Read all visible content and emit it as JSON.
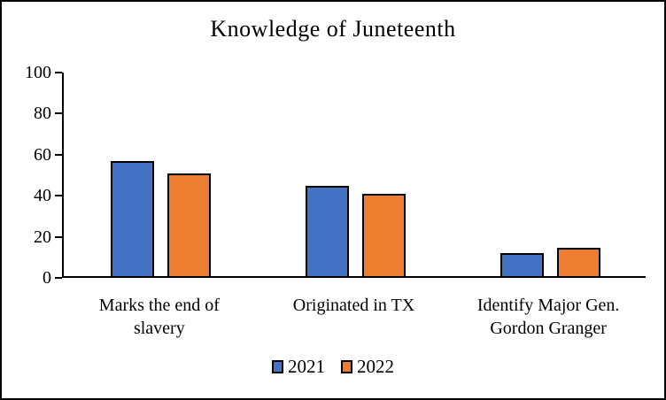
{
  "frame": {
    "background_color": "#ffffff",
    "border_color": "#000000"
  },
  "chart_data": {
    "type": "bar",
    "title": "Knowledge of Juneteenth",
    "categories": [
      "Marks the end of slavery",
      "Originated in TX",
      "Identify Major Gen. Gordon Granger"
    ],
    "series": [
      {
        "name": "2021",
        "color": "#4472C4",
        "values": [
          56,
          44,
          11
        ]
      },
      {
        "name": "2022",
        "color": "#ED7D31",
        "values": [
          50,
          40,
          14
        ]
      }
    ],
    "xlabel": "",
    "ylabel": "",
    "ylim": [
      0,
      100
    ],
    "ytick_step": 20,
    "ytick_labels": [
      "0",
      "20",
      "40",
      "60",
      "80",
      "100"
    ],
    "grid": false,
    "legend_position": "bottom",
    "bar_border_color": "#000000",
    "axis_color": "#000000",
    "text_color": "#000000"
  }
}
